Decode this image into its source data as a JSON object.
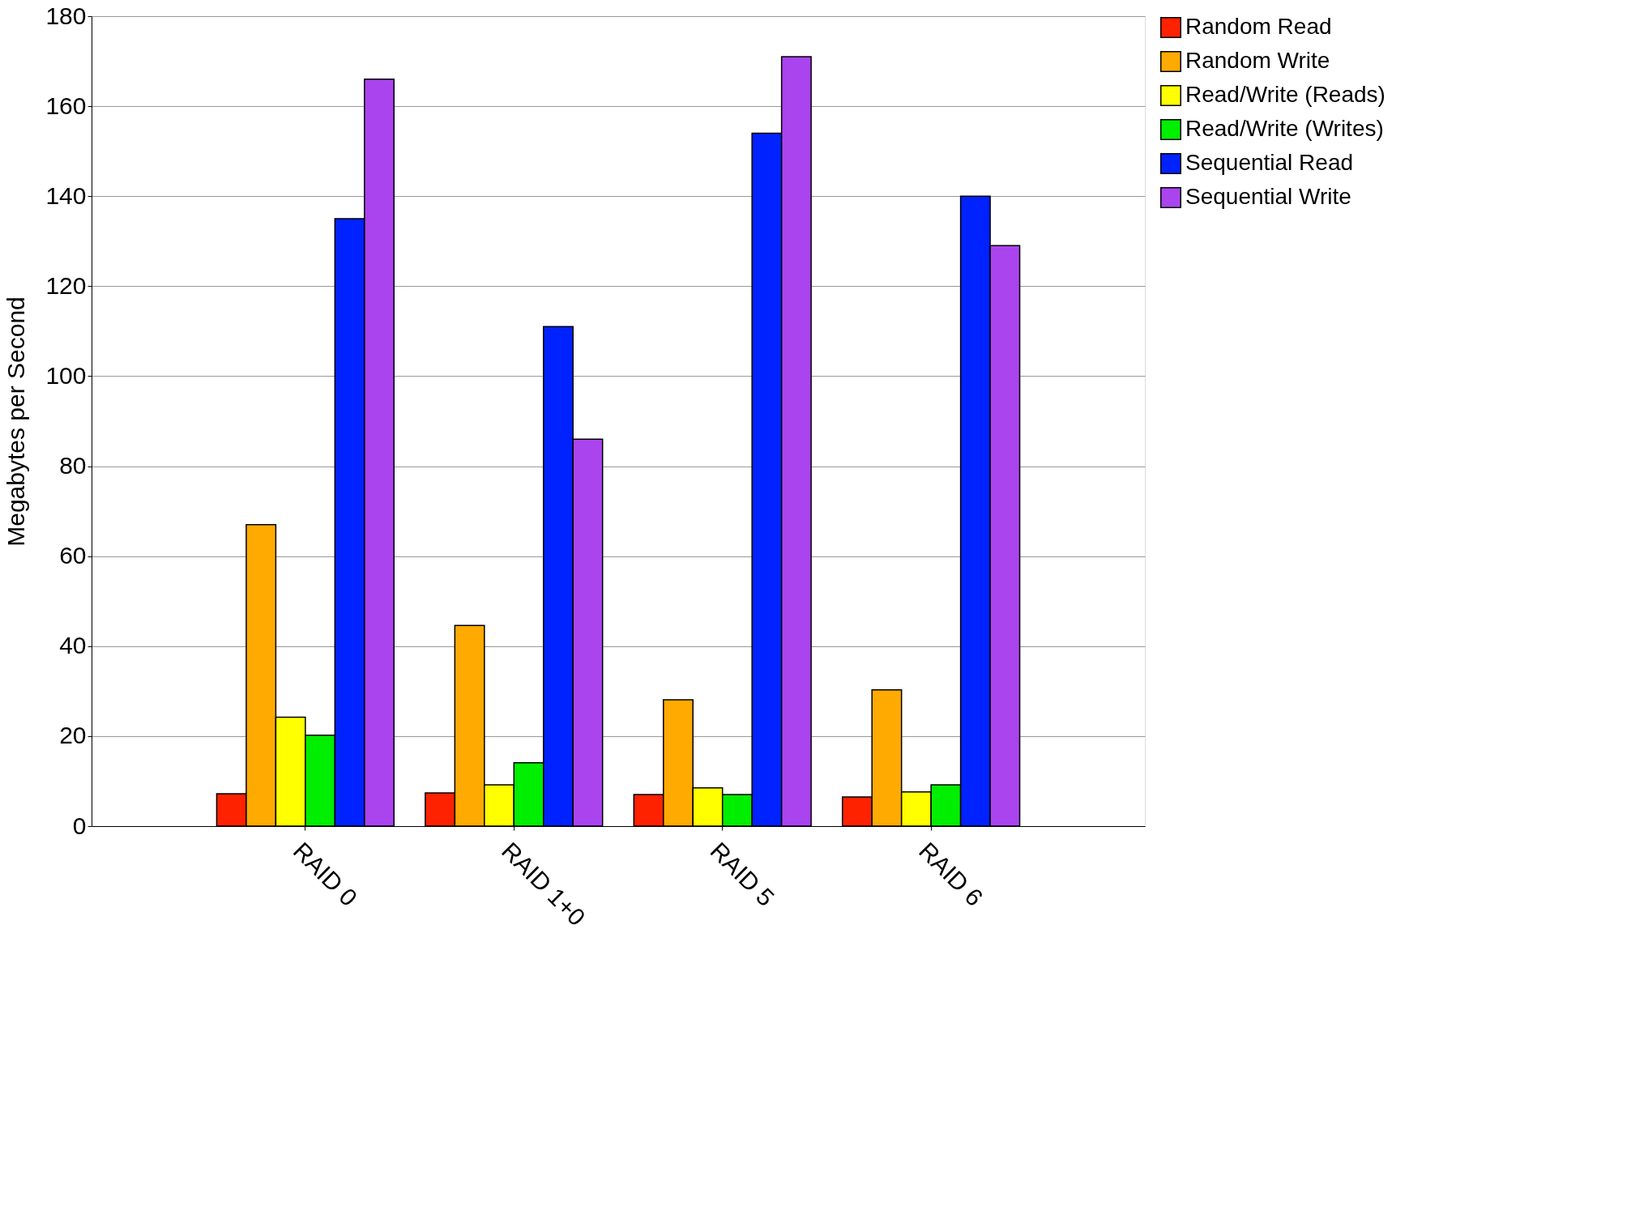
{
  "chart_data": {
    "type": "bar",
    "ylabel": "Megabytes per Second",
    "categories": [
      "RAID 0",
      "RAID 1+0",
      "RAID 5",
      "RAID 6"
    ],
    "series": [
      {
        "name": "Random Read",
        "color": "#ff2200",
        "values": [
          7.2,
          7.4,
          7.0,
          6.5
        ]
      },
      {
        "name": "Random Write",
        "color": "#ffaa00",
        "values": [
          67,
          44.6,
          28.1,
          30.3
        ]
      },
      {
        "name": "Read/Write (Reads)",
        "color": "#ffff00",
        "values": [
          24.2,
          9.2,
          8.5,
          7.6
        ]
      },
      {
        "name": "Read/Write (Writes)",
        "color": "#00ee00",
        "values": [
          20.2,
          14.1,
          7.0,
          9.2
        ]
      },
      {
        "name": "Sequential Read",
        "color": "#0022ff",
        "values": [
          135,
          111,
          154,
          140
        ]
      },
      {
        "name": "Sequential Write",
        "color": "#aa44ee",
        "values": [
          166,
          86,
          171,
          129
        ]
      }
    ],
    "ylim": [
      0,
      180
    ],
    "yticks": [
      0,
      20,
      40,
      60,
      80,
      100,
      120,
      140,
      160,
      180
    ],
    "grid": "y",
    "legend": "right"
  }
}
